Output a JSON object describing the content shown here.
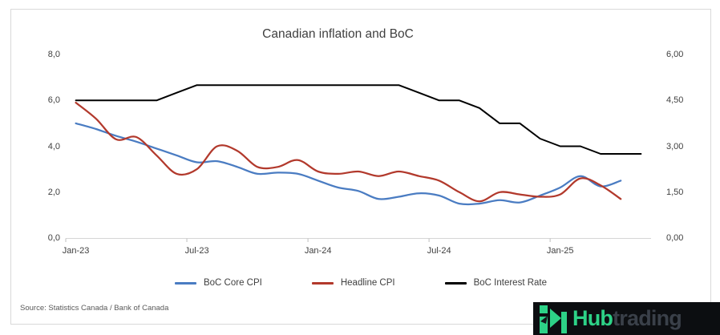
{
  "chart": {
    "title": "Canadian inflation and BoC",
    "source": "Source: Statistics Canada / Bank of Canada"
  },
  "chart_data": {
    "type": "line",
    "title": "Canadian inflation and BoC",
    "grid": false,
    "legend_position": "bottom",
    "categories": [
      "Jan-23",
      "Feb-23",
      "Mar-23",
      "Apr-23",
      "May-23",
      "Jun-23",
      "Jul-23",
      "Aug-23",
      "Sep-23",
      "Oct-23",
      "Nov-23",
      "Dec-23",
      "Jan-24",
      "Feb-24",
      "Mar-24",
      "Apr-24",
      "May-24",
      "Jun-24",
      "Jul-24",
      "Aug-24",
      "Sep-24",
      "Oct-24",
      "Nov-24",
      "Dec-24",
      "Jan-25",
      "Feb-25",
      "Mar-25",
      "Apr-25",
      "May-25"
    ],
    "series": [
      {
        "name": "BoC Core CPI",
        "axis": "left",
        "smooth": true,
        "color": "#4a7cc2",
        "values": [
          5.0,
          4.75,
          4.45,
          4.2,
          3.9,
          3.6,
          3.3,
          3.35,
          3.1,
          2.8,
          2.85,
          2.8,
          2.5,
          2.2,
          2.05,
          1.7,
          1.8,
          1.95,
          1.85,
          1.5,
          1.5,
          1.65,
          1.55,
          1.85,
          2.2,
          2.7,
          2.25,
          2.5
        ]
      },
      {
        "name": "Headline CPI",
        "axis": "left",
        "smooth": true,
        "color": "#b2392c",
        "values": [
          5.9,
          5.2,
          4.3,
          4.4,
          3.6,
          2.8,
          3.0,
          4.0,
          3.8,
          3.1,
          3.1,
          3.4,
          2.9,
          2.8,
          2.9,
          2.7,
          2.9,
          2.7,
          2.5,
          2.0,
          1.6,
          2.0,
          1.9,
          1.8,
          1.9,
          2.6,
          2.3,
          1.7
        ]
      },
      {
        "name": "BoC Interest Rate",
        "axis": "right",
        "smooth": false,
        "color": "#000000",
        "values": [
          4.5,
          4.5,
          4.5,
          4.5,
          4.5,
          4.75,
          5.0,
          5.0,
          5.0,
          5.0,
          5.0,
          5.0,
          5.0,
          5.0,
          5.0,
          5.0,
          5.0,
          4.75,
          4.5,
          4.5,
          4.25,
          3.75,
          3.75,
          3.25,
          3.0,
          3.0,
          2.75,
          2.75,
          2.75
        ]
      }
    ],
    "left_axis": {
      "min": 0,
      "max": 8,
      "tick_labels": [
        "0,0",
        "2,0",
        "4,0",
        "6,0",
        "8,0"
      ],
      "tick_values": [
        0,
        2,
        4,
        6,
        8
      ]
    },
    "right_axis": {
      "min": 0,
      "max": 6,
      "tick_labels": [
        "0,00",
        "1,50",
        "3,00",
        "4,50",
        "6,00"
      ],
      "tick_values": [
        0,
        1.5,
        3,
        4.5,
        6
      ]
    },
    "x_axis": {
      "tick_labels": [
        "Jan-23",
        "Jul-23",
        "Jan-24",
        "Jul-24",
        "Jan-25"
      ],
      "tick_indices": [
        0,
        6,
        12,
        18,
        24
      ]
    }
  },
  "logo": {
    "text_primary": "Hub",
    "text_secondary": "trading",
    "primary_color": "#2dd287",
    "secondary_color": "#3a4049",
    "background": "#0c0e11"
  }
}
